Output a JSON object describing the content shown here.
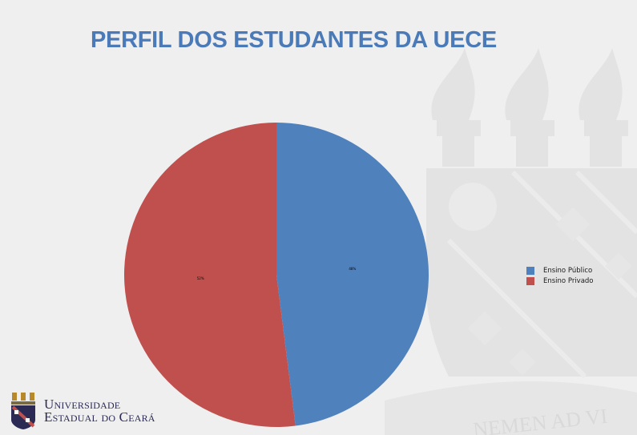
{
  "slide": {
    "title": "PERFIL DOS ESTUDANTES DA UECE",
    "title_color": "#4a7ab8",
    "watermark_motto": "NEMEN AD VI"
  },
  "chart_data": {
    "type": "pie",
    "categories": [
      "Ensino Público",
      "Ensino Privado"
    ],
    "values": [
      48,
      52
    ],
    "slice_labels": [
      "48%",
      "52%"
    ],
    "colors": [
      "#4f81bd",
      "#c0504d"
    ],
    "title": "",
    "legend_position": "right"
  },
  "logo": {
    "line1": "Universidade",
    "line2": "Estadual do Ceará",
    "icon": "uece-crest-icon"
  }
}
